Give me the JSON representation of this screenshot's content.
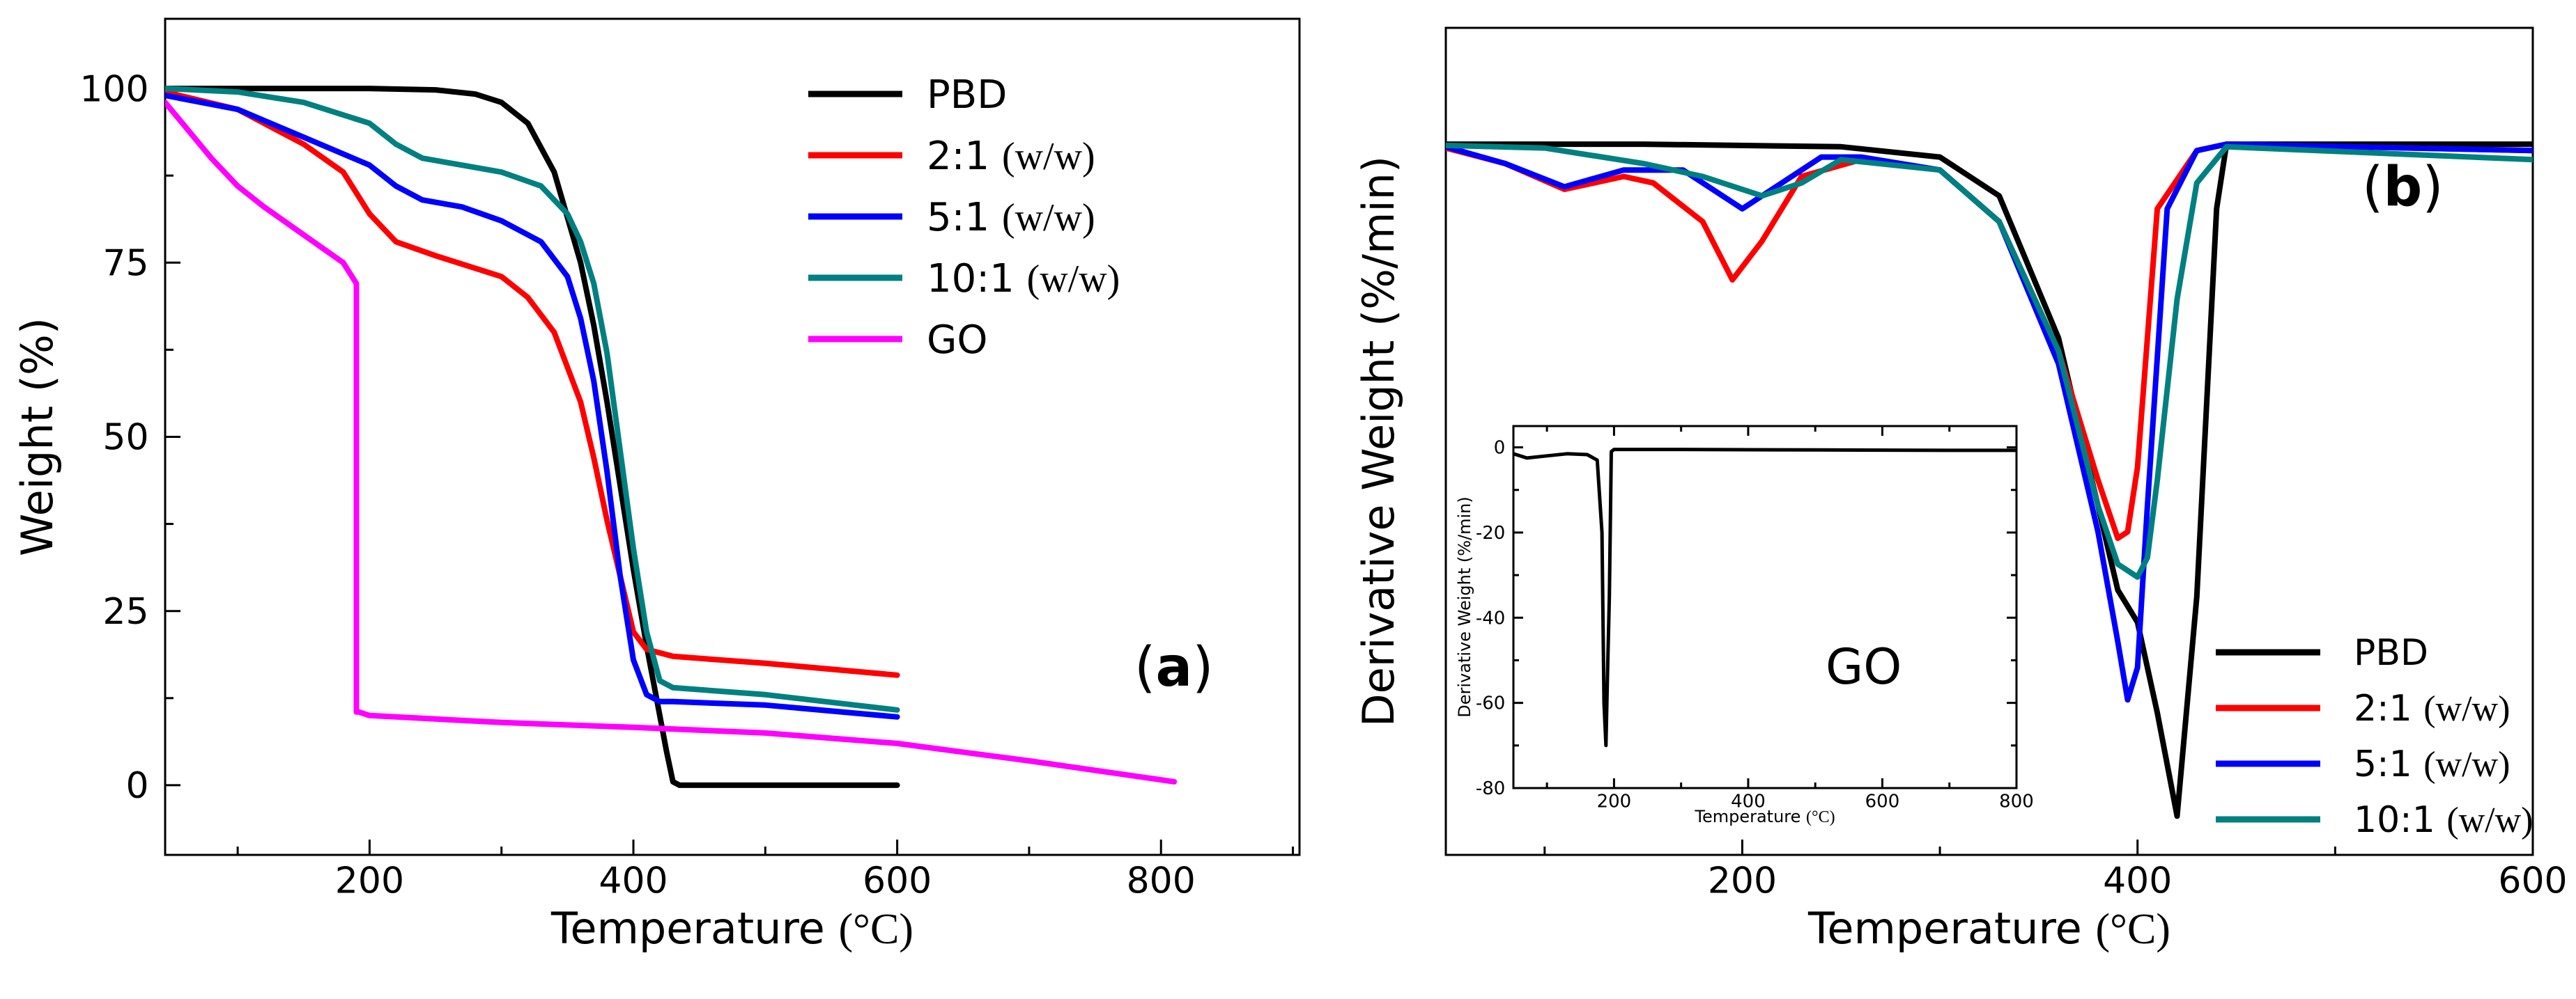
{
  "chart_data": [
    {
      "type": "line",
      "panel_label": "(a)",
      "xlabel": "Temperature (°C)",
      "ylabel": "Weight (%)",
      "xlim": [
        45,
        905
      ],
      "ylim": [
        -10,
        110
      ],
      "xticks": [
        200,
        400,
        600,
        800
      ],
      "yticks": [
        0,
        25,
        50,
        75,
        100
      ],
      "legend_position": "top-right",
      "series": [
        {
          "name": "PBD",
          "color": "#000000",
          "x": [
            45,
            100,
            200,
            250,
            280,
            300,
            320,
            340,
            360,
            370,
            380,
            390,
            400,
            410,
            420,
            425,
            430,
            435,
            450,
            500,
            600
          ],
          "y": [
            100,
            100,
            100,
            99.8,
            99.2,
            98,
            95,
            88,
            75,
            66,
            55,
            43,
            31,
            20,
            10,
            5,
            0.5,
            0,
            0,
            0,
            0
          ]
        },
        {
          "name": "2:1 (w/w)",
          "color": "#ff0000",
          "x": [
            45,
            100,
            150,
            180,
            200,
            220,
            250,
            300,
            320,
            340,
            360,
            370,
            380,
            390,
            400,
            410,
            420,
            430,
            500,
            600
          ],
          "y": [
            99.5,
            97,
            92,
            88,
            82,
            78,
            76,
            73,
            70,
            65,
            55,
            47,
            38,
            30,
            22,
            19.5,
            19,
            18.5,
            17.5,
            15.8
          ]
        },
        {
          "name": "5:1 (w/w)",
          "color": "#0000ff",
          "x": [
            45,
            100,
            150,
            200,
            220,
            240,
            270,
            300,
            330,
            350,
            360,
            370,
            380,
            390,
            400,
            410,
            420,
            430,
            500,
            600
          ],
          "y": [
            99,
            97,
            93,
            89,
            86,
            84,
            83,
            81,
            78,
            73,
            67,
            58,
            45,
            30,
            18,
            13,
            12,
            12,
            11.5,
            9.8
          ]
        },
        {
          "name": "10:1 (w/w)",
          "color": "#008080",
          "x": [
            45,
            100,
            150,
            200,
            220,
            240,
            270,
            300,
            330,
            350,
            360,
            370,
            380,
            390,
            400,
            410,
            420,
            430,
            500,
            600
          ],
          "y": [
            100,
            99.5,
            98,
            95,
            92,
            90,
            89,
            88,
            86,
            82,
            78,
            72,
            62,
            48,
            34,
            22,
            15,
            14,
            13,
            10.8
          ]
        },
        {
          "name": "GO",
          "color": "#ff00ff",
          "x": [
            45,
            80,
            100,
            120,
            150,
            180,
            190,
            190,
            192,
            200,
            250,
            300,
            400,
            500,
            600,
            700,
            810
          ],
          "y": [
            98,
            90,
            86,
            83,
            79,
            75,
            72,
            10.5,
            10.5,
            10,
            9.5,
            9,
            8.3,
            7.5,
            6,
            3.5,
            0.5
          ]
        }
      ]
    },
    {
      "type": "line",
      "panel_label": "(b)",
      "xlabel": "Temperature (°C)",
      "ylabel": "Derivative Weight (%/min)",
      "xlim": [
        50,
        600
      ],
      "ylim": [
        -5.5,
        0.9
      ],
      "xticks": [
        200,
        400,
        600
      ],
      "legend_position": "bottom-right",
      "series": [
        {
          "name": "PBD",
          "color": "#000000",
          "x": [
            50,
            150,
            250,
            300,
            330,
            360,
            380,
            390,
            400,
            410,
            420,
            430,
            440,
            445,
            600
          ],
          "y": [
            0,
            0,
            -0.02,
            -0.1,
            -0.4,
            -1.5,
            -2.8,
            -3.45,
            -3.7,
            -4.4,
            -5.2,
            -3.5,
            -0.5,
            0,
            0
          ]
        },
        {
          "name": "2:1 (w/w)",
          "color": "#ff0000",
          "x": [
            50,
            80,
            110,
            140,
            155,
            180,
            195,
            210,
            230,
            260,
            300,
            330,
            360,
            380,
            390,
            395,
            400,
            410,
            430,
            445,
            600
          ],
          "y": [
            -0.03,
            -0.15,
            -0.35,
            -0.25,
            -0.3,
            -0.6,
            -1.05,
            -0.75,
            -0.25,
            -0.12,
            -0.2,
            -0.6,
            -1.6,
            -2.6,
            -3.05,
            -3.0,
            -2.5,
            -0.5,
            -0.05,
            0,
            -0.05
          ]
        },
        {
          "name": "5:1 (w/w)",
          "color": "#0000ff",
          "x": [
            50,
            80,
            110,
            140,
            170,
            200,
            220,
            240,
            260,
            300,
            330,
            360,
            380,
            390,
            395,
            400,
            405,
            415,
            430,
            445,
            600
          ],
          "y": [
            -0.02,
            -0.15,
            -0.33,
            -0.2,
            -0.2,
            -0.5,
            -0.3,
            -0.1,
            -0.1,
            -0.2,
            -0.6,
            -1.7,
            -3.0,
            -3.85,
            -4.3,
            -4.05,
            -2.8,
            -0.5,
            -0.05,
            0,
            -0.05
          ]
        },
        {
          "name": "10:1 (w/w)",
          "color": "#008080",
          "x": [
            50,
            100,
            150,
            180,
            210,
            230,
            250,
            300,
            330,
            360,
            380,
            390,
            400,
            405,
            410,
            420,
            430,
            445,
            600
          ],
          "y": [
            -0.01,
            -0.03,
            -0.15,
            -0.25,
            -0.4,
            -0.3,
            -0.12,
            -0.2,
            -0.6,
            -1.6,
            -2.8,
            -3.25,
            -3.35,
            -3.2,
            -2.6,
            -1.2,
            -0.3,
            -0.02,
            -0.12
          ]
        }
      ]
    },
    {
      "type": "line",
      "panel_label": "GO",
      "xlabel": "Temperature (°C)",
      "ylabel": "Derivative Weight (%/min)",
      "xlim": [
        50,
        800
      ],
      "ylim": [
        -80,
        5
      ],
      "xticks": [
        200,
        400,
        600,
        800
      ],
      "yticks": [
        0,
        -20,
        -40,
        -60,
        -80
      ],
      "series": [
        {
          "name": "GO",
          "color": "#000000",
          "x": [
            50,
            70,
            100,
            130,
            160,
            175,
            182,
            185,
            188,
            190,
            193,
            196,
            200,
            300,
            500,
            700,
            800
          ],
          "y": [
            -1.5,
            -2.5,
            -2,
            -1.5,
            -1.7,
            -3,
            -20,
            -60,
            -70,
            -55,
            -35,
            -1,
            -0.5,
            -0.5,
            -0.6,
            -0.7,
            -0.7
          ]
        }
      ]
    }
  ]
}
